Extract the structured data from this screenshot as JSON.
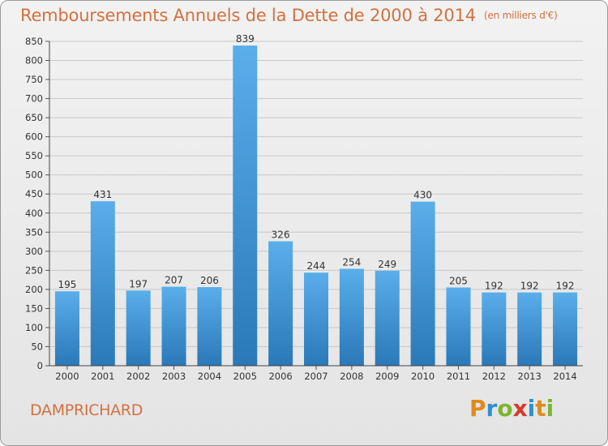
{
  "header": {
    "title": "Remboursements Annuels de la Dette de 2000 à 2014",
    "unit": "(en milliers d'€)"
  },
  "footer": {
    "commune": "DAMPRICHARD",
    "logo": "Proxiti"
  },
  "colors": {
    "bar_top": "#5aaeea",
    "bar_bottom": "#2a78b8",
    "title": "#d4713f",
    "grid": "#c8c8c8"
  },
  "chart_data": {
    "type": "bar",
    "title": "Remboursements Annuels de la Dette de 2000 à 2014",
    "xlabel": "",
    "ylabel": "",
    "categories": [
      "2000",
      "2001",
      "2002",
      "2003",
      "2004",
      "2005",
      "2006",
      "2007",
      "2008",
      "2009",
      "2010",
      "2011",
      "2012",
      "2013",
      "2014"
    ],
    "values": [
      195,
      431,
      197,
      207,
      206,
      839,
      326,
      244,
      254,
      249,
      430,
      205,
      192,
      192,
      192
    ],
    "ylim": [
      0,
      850
    ],
    "yticks": [
      0,
      50,
      100,
      150,
      200,
      250,
      300,
      350,
      400,
      450,
      500,
      550,
      600,
      650,
      700,
      750,
      800,
      850
    ],
    "grid": true,
    "legend": "none"
  }
}
